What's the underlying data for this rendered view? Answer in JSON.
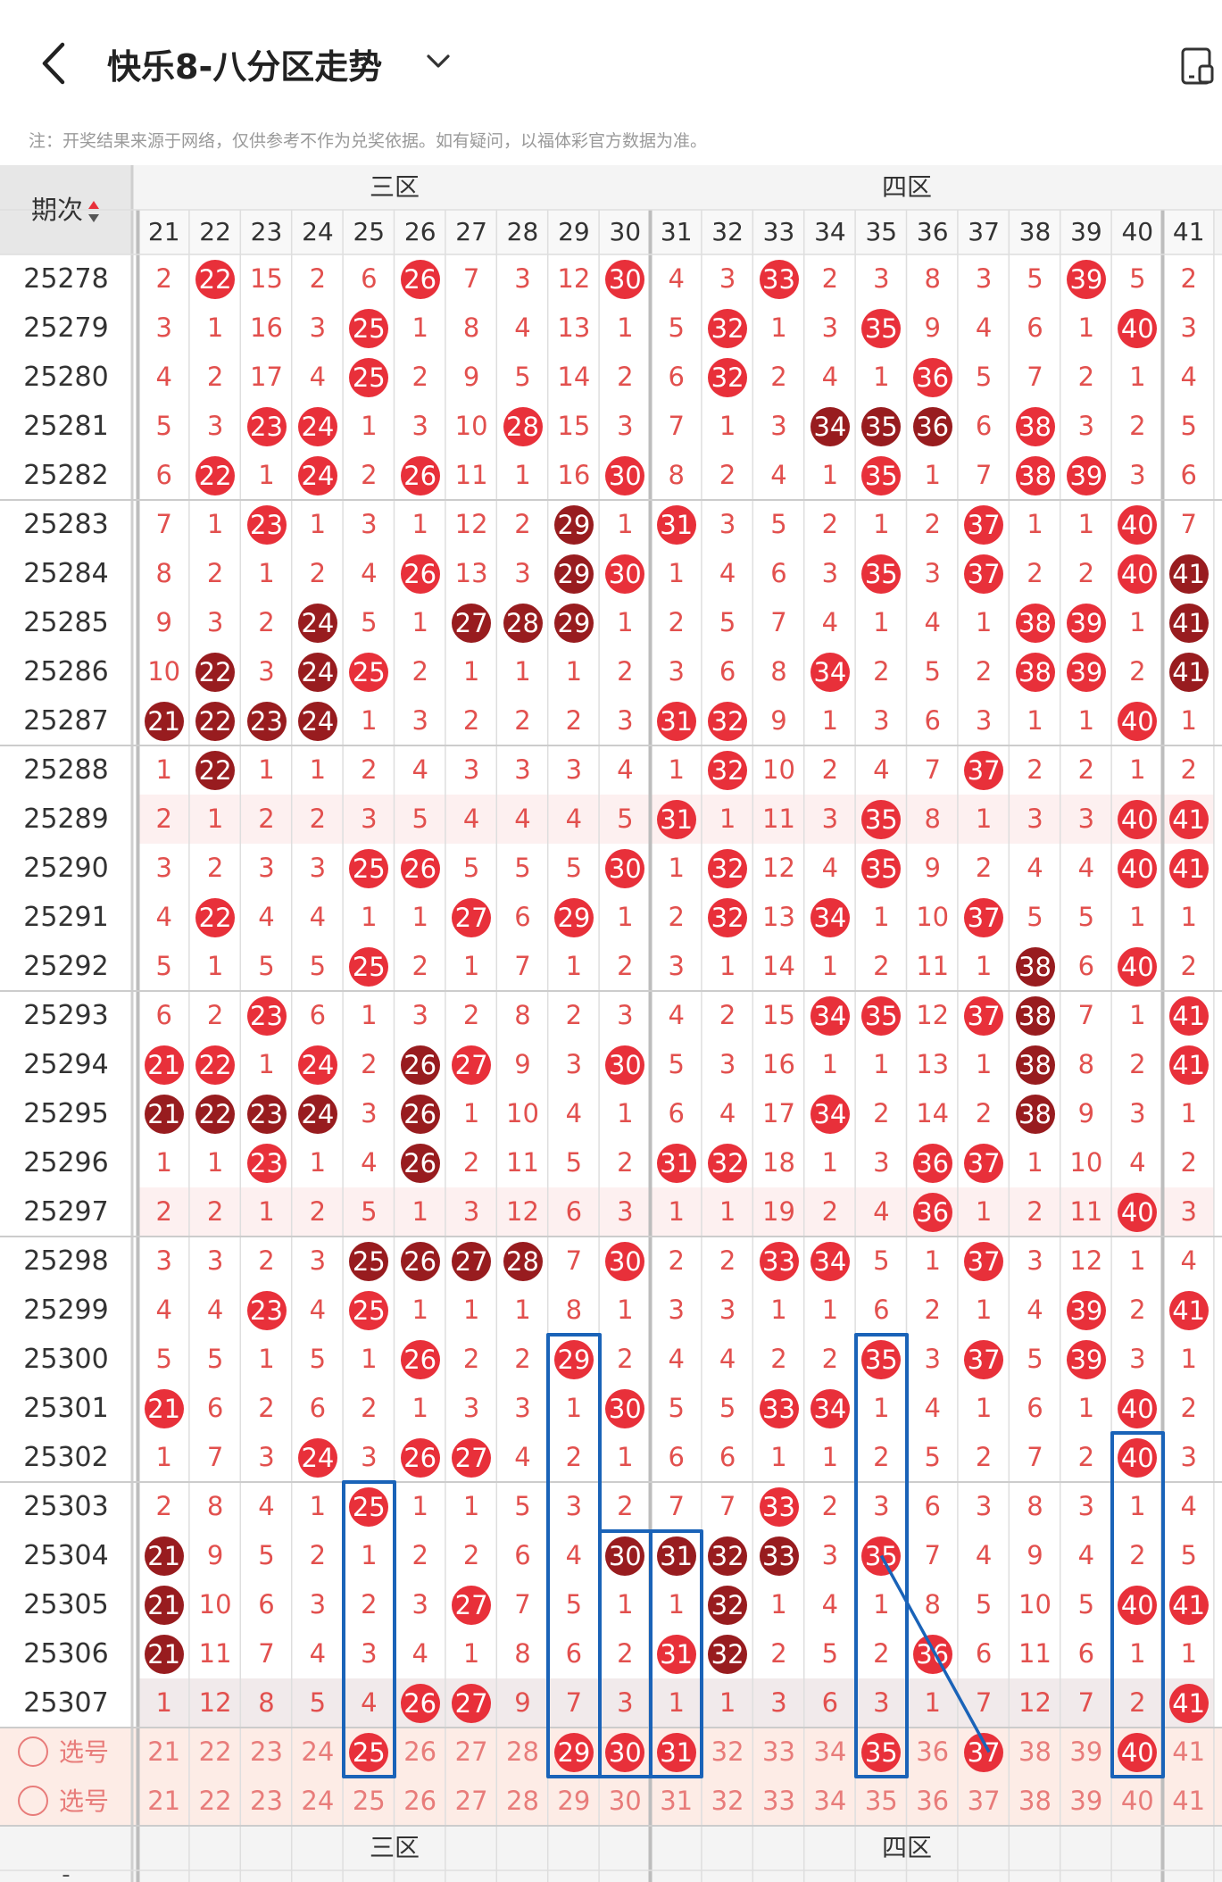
{
  "header": {
    "title": "快乐8-八分区走势",
    "back_icon": "chevron-left-icon",
    "dropdown_icon": "chevron-down-icon",
    "device_icon": "device-toggle-icon"
  },
  "notice": "注：开奖结果来源于网络，仅供参考不作为兑奖依据。如有疑问，以福体彩官方数据为准。",
  "table": {
    "period_header": "期次",
    "zones": [
      {
        "name": "三区",
        "from": 21,
        "to": 30
      },
      {
        "name": "四区",
        "from": 31,
        "to": 40
      }
    ],
    "columns": [
      "21",
      "22",
      "23",
      "24",
      "25",
      "26",
      "27",
      "28",
      "29",
      "30",
      "31",
      "32",
      "33",
      "34",
      "35",
      "36",
      "37",
      "38",
      "39",
      "40",
      "41"
    ],
    "rows": [
      {
        "period": "25278",
        "v": [
          2,
          "R22",
          15,
          2,
          6,
          "R26",
          7,
          3,
          12,
          "R30",
          4,
          3,
          "R33",
          2,
          3,
          8,
          3,
          5,
          "R39",
          5,
          2
        ]
      },
      {
        "period": "25279",
        "v": [
          3,
          1,
          16,
          3,
          "R25",
          1,
          8,
          4,
          13,
          1,
          5,
          "R32",
          1,
          3,
          "R35",
          9,
          4,
          6,
          1,
          "R40",
          3
        ]
      },
      {
        "period": "25280",
        "v": [
          4,
          2,
          17,
          4,
          "R25",
          2,
          9,
          5,
          14,
          2,
          6,
          "R32",
          2,
          4,
          1,
          "R36",
          5,
          7,
          2,
          1,
          4
        ]
      },
      {
        "period": "25281",
        "v": [
          5,
          3,
          "R23",
          "R24",
          1,
          3,
          10,
          "R28",
          15,
          3,
          7,
          1,
          3,
          "D34",
          "D35",
          "D36",
          6,
          "R38",
          3,
          2,
          5
        ]
      },
      {
        "period": "25282",
        "v": [
          6,
          "R22",
          1,
          "R24",
          2,
          "R26",
          11,
          1,
          16,
          "R30",
          8,
          2,
          4,
          1,
          "R35",
          1,
          7,
          "R38",
          "R39",
          3,
          6
        ]
      },
      {
        "period": "25283",
        "v": [
          7,
          1,
          "R23",
          1,
          3,
          1,
          12,
          2,
          "D29",
          1,
          "R31",
          3,
          5,
          2,
          1,
          2,
          "R37",
          1,
          1,
          "R40",
          7
        ]
      },
      {
        "period": "25284",
        "v": [
          8,
          2,
          1,
          2,
          4,
          "R26",
          13,
          3,
          "D29",
          "R30",
          1,
          4,
          6,
          3,
          "R35",
          3,
          "R37",
          2,
          2,
          "R40",
          "D41"
        ]
      },
      {
        "period": "25285",
        "v": [
          9,
          3,
          2,
          "D24",
          5,
          1,
          "D27",
          "D28",
          "D29",
          1,
          2,
          5,
          7,
          4,
          1,
          4,
          1,
          "R38",
          "R39",
          1,
          "D41"
        ]
      },
      {
        "period": "25286",
        "v": [
          10,
          "D22",
          3,
          "D24",
          "R25",
          2,
          1,
          1,
          1,
          2,
          3,
          6,
          8,
          "R34",
          2,
          5,
          2,
          "R38",
          "R39",
          2,
          "D41"
        ]
      },
      {
        "period": "25287",
        "v": [
          "D21",
          "D22",
          "D23",
          "D24",
          1,
          3,
          2,
          2,
          2,
          3,
          "R31",
          "R32",
          9,
          1,
          3,
          6,
          3,
          1,
          1,
          "R40",
          1
        ]
      },
      {
        "period": "25288",
        "v": [
          1,
          "D22",
          1,
          1,
          2,
          4,
          3,
          3,
          3,
          4,
          1,
          "R32",
          10,
          2,
          4,
          7,
          "R37",
          2,
          2,
          1,
          2
        ]
      },
      {
        "period": "25289",
        "v": [
          2,
          1,
          2,
          2,
          3,
          5,
          4,
          4,
          4,
          5,
          "R31",
          1,
          11,
          3,
          "R35",
          8,
          1,
          3,
          3,
          "R40",
          "R41"
        ]
      },
      {
        "period": "25290",
        "v": [
          3,
          2,
          3,
          3,
          "R25",
          "R26",
          5,
          5,
          5,
          "R30",
          1,
          "R32",
          12,
          4,
          "R35",
          9,
          2,
          4,
          4,
          "R40",
          "R41"
        ]
      },
      {
        "period": "25291",
        "v": [
          4,
          "R22",
          4,
          4,
          1,
          1,
          "R27",
          6,
          "R29",
          1,
          2,
          "R32",
          13,
          "R34",
          1,
          10,
          "R37",
          5,
          5,
          1,
          1
        ]
      },
      {
        "period": "25292",
        "v": [
          5,
          1,
          5,
          5,
          "R25",
          2,
          1,
          7,
          1,
          2,
          3,
          1,
          14,
          1,
          2,
          11,
          1,
          "D38",
          6,
          "R40",
          2
        ]
      },
      {
        "period": "25293",
        "v": [
          6,
          2,
          "R23",
          6,
          1,
          3,
          2,
          8,
          2,
          3,
          4,
          2,
          15,
          "R34",
          "R35",
          12,
          "R37",
          "D38",
          7,
          1,
          "R41"
        ]
      },
      {
        "period": "25294",
        "v": [
          "R21",
          "R22",
          1,
          "R24",
          2,
          "D26",
          "R27",
          9,
          3,
          "R30",
          5,
          3,
          16,
          1,
          1,
          13,
          1,
          "D38",
          8,
          2,
          "R41"
        ]
      },
      {
        "period": "25295",
        "v": [
          "D21",
          "D22",
          "D23",
          "D24",
          3,
          "D26",
          1,
          10,
          4,
          1,
          6,
          4,
          17,
          "R34",
          2,
          14,
          2,
          "D38",
          9,
          3,
          1
        ]
      },
      {
        "period": "25296",
        "v": [
          1,
          1,
          "R23",
          1,
          4,
          "D26",
          2,
          11,
          5,
          2,
          "R31",
          "R32",
          18,
          1,
          3,
          "R36",
          "R37",
          1,
          10,
          4,
          2
        ]
      },
      {
        "period": "25297",
        "v": [
          2,
          2,
          1,
          2,
          5,
          1,
          3,
          12,
          6,
          3,
          1,
          1,
          19,
          2,
          4,
          "R36",
          1,
          2,
          11,
          "R40",
          3
        ]
      },
      {
        "period": "25298",
        "v": [
          3,
          3,
          2,
          3,
          "D25",
          "D26",
          "D27",
          "D28",
          7,
          "R30",
          2,
          2,
          "R33",
          "R34",
          5,
          1,
          "R37",
          3,
          12,
          1,
          4
        ]
      },
      {
        "period": "25299",
        "v": [
          4,
          4,
          "R23",
          4,
          "R25",
          1,
          1,
          1,
          8,
          1,
          3,
          3,
          1,
          1,
          6,
          2,
          1,
          4,
          "R39",
          2,
          "R41"
        ]
      },
      {
        "period": "25300",
        "v": [
          5,
          5,
          1,
          5,
          1,
          "R26",
          2,
          2,
          "R29",
          2,
          4,
          4,
          2,
          2,
          "R35",
          3,
          "R37",
          5,
          "R39",
          3,
          1
        ]
      },
      {
        "period": "25301",
        "v": [
          "R21",
          6,
          2,
          6,
          2,
          1,
          3,
          3,
          1,
          "R30",
          5,
          5,
          "R33",
          "R34",
          1,
          4,
          1,
          6,
          1,
          "R40",
          2
        ]
      },
      {
        "period": "25302",
        "v": [
          1,
          7,
          3,
          "R24",
          3,
          "R26",
          "R27",
          4,
          2,
          1,
          6,
          6,
          1,
          1,
          2,
          5,
          2,
          7,
          2,
          "R40",
          3
        ]
      },
      {
        "period": "25303",
        "v": [
          2,
          8,
          4,
          1,
          "R25",
          1,
          1,
          5,
          3,
          2,
          7,
          7,
          "R33",
          2,
          3,
          6,
          3,
          8,
          3,
          1,
          4
        ]
      },
      {
        "period": "25304",
        "v": [
          "D21",
          9,
          5,
          2,
          1,
          2,
          2,
          6,
          4,
          "D30",
          "D31",
          "D32",
          "D33",
          3,
          "R35",
          7,
          4,
          9,
          4,
          2,
          5
        ]
      },
      {
        "period": "25305",
        "v": [
          "D21",
          10,
          6,
          3,
          2,
          3,
          "R27",
          7,
          5,
          1,
          1,
          "D32",
          1,
          4,
          1,
          8,
          5,
          10,
          5,
          "R40",
          "R41"
        ]
      },
      {
        "period": "25306",
        "v": [
          "D21",
          11,
          7,
          4,
          3,
          4,
          1,
          8,
          6,
          2,
          "R31",
          "D32",
          2,
          5,
          2,
          "R36",
          6,
          11,
          6,
          1,
          1
        ]
      },
      {
        "period": "25307",
        "v": [
          1,
          12,
          8,
          5,
          4,
          "R26",
          "R27",
          9,
          7,
          3,
          1,
          1,
          3,
          6,
          3,
          1,
          7,
          12,
          7,
          2,
          "R41"
        ]
      }
    ],
    "pick_rows": [
      {
        "label": "选号",
        "selected": [
          "25",
          "29",
          "30",
          "31",
          "35",
          "37",
          "40"
        ]
      },
      {
        "label": "选号",
        "selected": []
      }
    ],
    "footer_zones": [
      "三区",
      "四区"
    ],
    "footer_period_dash": "-"
  },
  "colors": {
    "ball_red": "#e8303a",
    "ball_dark": "#981c1f",
    "miss_number": "#e2504e",
    "annotation_blue": "#1a63b8"
  }
}
